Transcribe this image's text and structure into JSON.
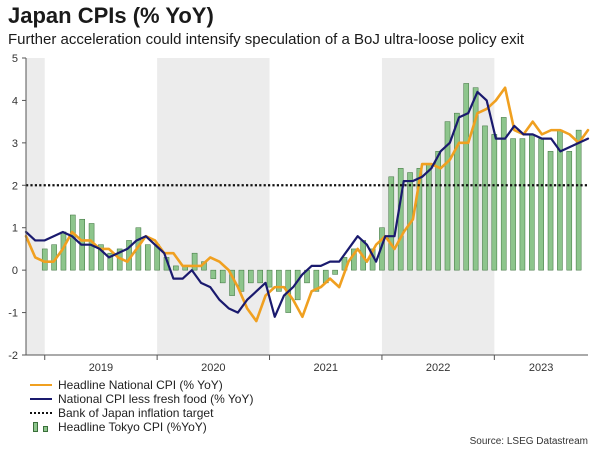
{
  "title": "Japan CPIs (% YoY)",
  "subtitle": "Further acceleration could intensify speculation of a BoJ ultra-loose policy exit",
  "source": "Source: LSEG Datastream",
  "legend": {
    "headline": "Headline National CPI (% YoY)",
    "core": "National CPI less fresh food (% YoY)",
    "target": "Bank of Japan inflation target",
    "tokyo": "Headline Tokyo CPI (%YoY)"
  },
  "colors": {
    "headline": "#f0a020",
    "core": "#1a1a6e",
    "tokyo_fill": "#8dc58c",
    "tokyo_stroke": "#3a6f3a",
    "shade": "#ececec",
    "target": "#111111"
  },
  "chart_data": {
    "type": "line",
    "title": "Japan CPIs (% YoY)",
    "ylim": [
      -2,
      5
    ],
    "yticks": [
      -2,
      -1,
      0,
      1,
      2,
      3,
      4,
      5
    ],
    "xlabels": [
      "2019",
      "2020",
      "2021",
      "2022",
      "2023"
    ],
    "x_start": "2018-11",
    "x_end": "2023-11",
    "target_line": 2,
    "shaded_years": [
      "2018",
      "2020",
      "2022"
    ],
    "grid": false,
    "series": [
      {
        "name": "Headline National CPI (% YoY)",
        "kind": "line",
        "values": [
          0.8,
          0.3,
          0.2,
          0.2,
          0.5,
          0.9,
          0.7,
          0.7,
          0.5,
          0.5,
          0.3,
          0.2,
          0.5,
          0.8,
          0.7,
          0.4,
          0.4,
          0.1,
          0.1,
          0.1,
          0.3,
          0.2,
          0.0,
          -0.4,
          -0.9,
          -1.2,
          -0.6,
          -0.4,
          -0.4,
          -0.7,
          -1.1,
          -0.5,
          -0.4,
          -0.2,
          -0.4,
          0.2,
          0.5,
          0.2,
          0.6,
          0.8,
          0.5,
          0.9,
          1.2,
          2.5,
          2.5,
          2.4,
          2.6,
          3.0,
          3.0,
          3.7,
          3.8,
          4.0,
          4.3,
          3.3,
          3.2,
          3.5,
          3.2,
          3.3,
          3.3,
          3.2,
          3.0,
          3.3
        ]
      },
      {
        "name": "National CPI less fresh food (% YoY)",
        "kind": "line",
        "values": [
          0.9,
          0.7,
          0.7,
          0.8,
          0.9,
          0.8,
          0.6,
          0.6,
          0.5,
          0.3,
          0.4,
          0.5,
          0.7,
          0.8,
          0.6,
          0.4,
          -0.2,
          -0.2,
          0.0,
          -0.3,
          -0.4,
          -0.7,
          -0.9,
          -1.0,
          -0.7,
          -0.5,
          -0.3,
          -1.1,
          -0.6,
          -0.4,
          -0.1,
          0.1,
          0.1,
          0.2,
          0.2,
          0.5,
          0.8,
          0.6,
          0.2,
          0.8,
          0.8,
          2.1,
          2.1,
          2.2,
          2.4,
          2.8,
          3.0,
          3.6,
          3.7,
          4.2,
          4.0,
          3.1,
          3.1,
          3.4,
          3.2,
          3.2,
          3.1,
          3.1,
          2.8,
          2.9,
          3.0,
          3.1
        ]
      },
      {
        "name": "Headline Tokyo CPI (%YoY)",
        "kind": "bar",
        "values": [
          0.5,
          0.6,
          0.9,
          1.3,
          1.2,
          1.1,
          0.6,
          0.4,
          0.5,
          0.7,
          1.0,
          0.6,
          0.6,
          0.3,
          0.1,
          0.1,
          0.4,
          0.2,
          -0.2,
          -0.3,
          -0.6,
          -0.5,
          -0.3,
          -0.3,
          -0.4,
          -0.5,
          -1.0,
          -0.7,
          -0.3,
          -0.5,
          -0.3,
          -0.1,
          0.3,
          0.5,
          0.7,
          0.5,
          1.0,
          2.2,
          2.4,
          2.3,
          2.4,
          2.5,
          2.8,
          3.5,
          3.7,
          4.4,
          4.3,
          3.4,
          3.2,
          3.6,
          3.1,
          3.1,
          3.2,
          3.1,
          2.8,
          3.3,
          2.8,
          3.3
        ]
      }
    ]
  }
}
